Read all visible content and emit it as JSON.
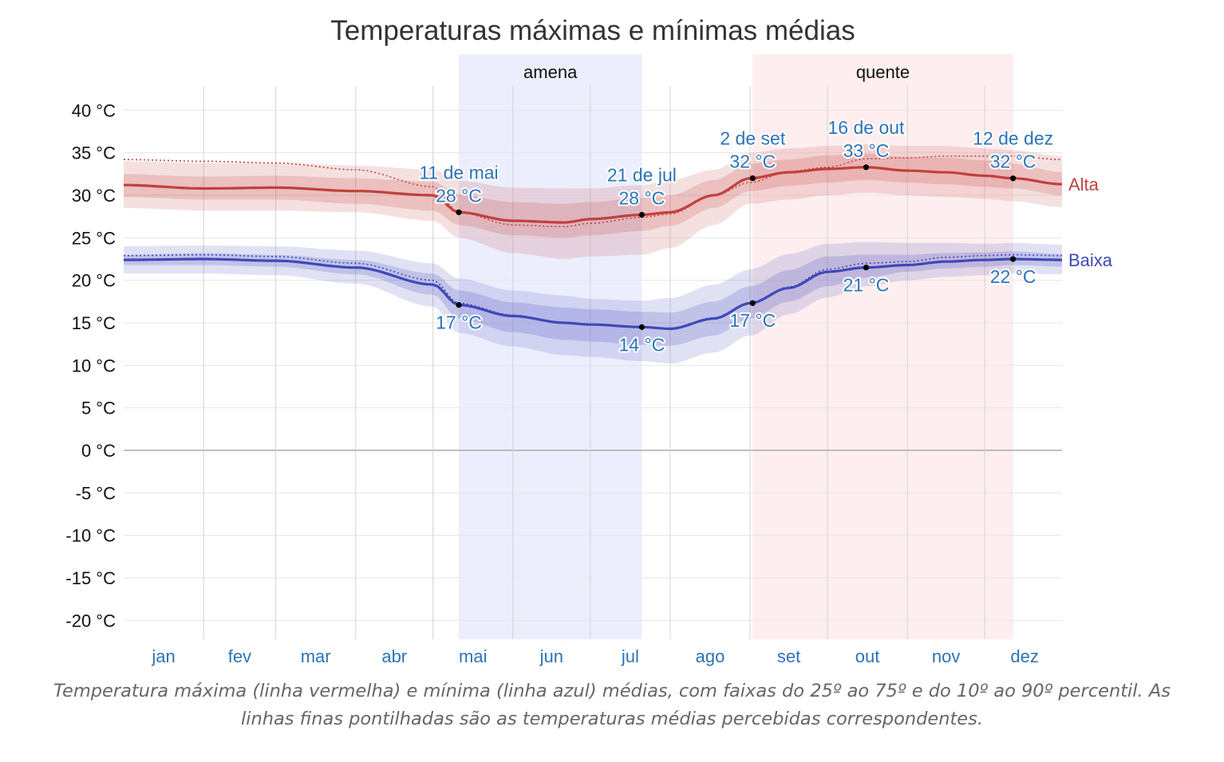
{
  "chart_data": {
    "type": "line",
    "title": "Temperaturas máximas e mínimas médias",
    "x_unit": "dia do ano",
    "month_labels": [
      "jan",
      "fev",
      "mar",
      "abr",
      "mai",
      "jun",
      "jul",
      "ago",
      "set",
      "out",
      "nov",
      "dez"
    ],
    "ylim": [
      -23,
      46
    ],
    "y_ticks": [
      40,
      35,
      30,
      25,
      20,
      15,
      10,
      5,
      0,
      -5,
      -10,
      -15,
      -20
    ],
    "y_tick_labels": [
      "40 °C",
      "35 °C",
      "30 °C",
      "25 °C",
      "20 °C",
      "15 °C",
      "10 °C",
      "5 °C",
      "0 °C",
      "-5 °C",
      "-10 °C",
      "-15 °C",
      "-20 °C"
    ],
    "x": [
      1,
      32,
      60,
      91,
      121,
      131,
      152,
      172,
      182,
      202,
      213,
      230,
      244,
      259,
      274,
      289,
      305,
      320,
      335,
      346,
      365
    ],
    "seasons": [
      {
        "label": "amena",
        "start_day": 131,
        "end_day": 202,
        "color": "#dfe3fb"
      },
      {
        "label": "quente",
        "start_day": 245,
        "end_day": 346,
        "color": "#fde2e4"
      }
    ],
    "series": [
      {
        "name": "Alta",
        "color": "#c1403d",
        "values": [
          31.2,
          30.8,
          30.9,
          30.5,
          30.0,
          28.0,
          27.0,
          26.8,
          27.2,
          27.7,
          28.0,
          30.0,
          32.0,
          32.7,
          33.1,
          33.3,
          32.9,
          32.7,
          32.3,
          32.0,
          31.3
        ],
        "p25": [
          29.8,
          29.5,
          29.5,
          29.0,
          28.2,
          26.5,
          25.3,
          25.0,
          25.3,
          25.8,
          26.4,
          28.5,
          30.5,
          31.1,
          31.5,
          31.8,
          31.5,
          31.3,
          31.0,
          30.8,
          30.0
        ],
        "p75": [
          32.5,
          32.2,
          32.3,
          32.0,
          31.6,
          30.1,
          29.2,
          29.0,
          29.2,
          29.7,
          30.0,
          31.8,
          33.7,
          34.2,
          34.7,
          34.9,
          34.5,
          34.4,
          34.1,
          33.7,
          32.7
        ],
        "p10": [
          28.5,
          28.2,
          28.2,
          28.0,
          27.0,
          25.0,
          23.2,
          22.5,
          22.8,
          23.0,
          23.8,
          26.5,
          29.0,
          29.5,
          30.0,
          30.3,
          30.0,
          29.8,
          29.6,
          29.3,
          28.6
        ],
        "p90": [
          34.0,
          33.8,
          33.8,
          33.5,
          33.0,
          31.7,
          30.9,
          30.8,
          30.8,
          31.2,
          31.8,
          33.0,
          35.0,
          35.5,
          35.8,
          36.0,
          35.8,
          35.8,
          35.5,
          35.3,
          34.6
        ],
        "perceived": [
          34.2,
          34.0,
          33.8,
          33.0,
          31.0,
          28.0,
          26.5,
          26.3,
          26.7,
          27.4,
          27.8,
          30.0,
          31.5,
          32.8,
          33.3,
          34.3,
          34.4,
          34.6,
          34.6,
          34.6,
          34.2
        ]
      },
      {
        "name": "Baixa",
        "color": "#3f48b8",
        "values": [
          22.4,
          22.5,
          22.3,
          21.5,
          19.5,
          17.1,
          15.8,
          15.0,
          14.8,
          14.5,
          14.3,
          15.5,
          17.3,
          19.1,
          21.0,
          21.5,
          21.8,
          22.2,
          22.4,
          22.5,
          22.4
        ],
        "p25": [
          21.8,
          21.8,
          21.6,
          20.7,
          18.3,
          15.5,
          13.9,
          13.0,
          12.8,
          12.4,
          12.3,
          13.5,
          15.5,
          17.5,
          19.3,
          20.3,
          21.0,
          21.4,
          21.6,
          21.8,
          21.6
        ],
        "p75": [
          23.0,
          23.2,
          23.0,
          22.4,
          20.8,
          18.8,
          17.4,
          16.8,
          16.6,
          16.3,
          16.2,
          17.5,
          19.3,
          21.2,
          22.8,
          23.0,
          23.0,
          23.2,
          23.3,
          23.4,
          23.1
        ],
        "p10": [
          20.8,
          20.8,
          20.6,
          19.6,
          16.9,
          13.8,
          12.2,
          11.2,
          11.0,
          10.5,
          10.2,
          11.5,
          13.5,
          16.0,
          18.0,
          19.3,
          20.0,
          20.4,
          20.6,
          20.8,
          20.7
        ],
        "p90": [
          24.0,
          24.1,
          24.0,
          23.5,
          22.0,
          20.2,
          18.8,
          18.2,
          17.8,
          17.6,
          17.9,
          19.5,
          21.3,
          23.1,
          24.3,
          24.5,
          24.4,
          24.4,
          24.3,
          24.4,
          24.2
        ],
        "perceived": [
          22.9,
          23.0,
          22.8,
          22.0,
          20.0,
          17.3,
          15.9,
          15.0,
          14.8,
          14.5,
          14.3,
          15.6,
          17.3,
          19.2,
          21.3,
          22.0,
          22.2,
          22.7,
          22.9,
          23.0,
          22.9
        ]
      }
    ],
    "annotations": [
      {
        "series": "Alta",
        "day": 131,
        "value": 28,
        "date_label": "11 de mai",
        "value_label": "28 °C",
        "position": "above"
      },
      {
        "series": "Alta",
        "day": 202,
        "value": 28,
        "date_label": "21 de jul",
        "value_label": "28 °C",
        "position": "above"
      },
      {
        "series": "Alta",
        "day": 245,
        "value": 32,
        "date_label": "2 de set",
        "value_label": "32 °C",
        "position": "above"
      },
      {
        "series": "Alta",
        "day": 289,
        "value": 33,
        "date_label": "16 de out",
        "value_label": "33 °C",
        "position": "above"
      },
      {
        "series": "Alta",
        "day": 346,
        "value": 32,
        "date_label": "12 de dez",
        "value_label": "32 °C",
        "position": "above"
      },
      {
        "series": "Baixa",
        "day": 131,
        "value": 17,
        "date_label": "",
        "value_label": "17 °C",
        "position": "below"
      },
      {
        "series": "Baixa",
        "day": 202,
        "value": 14,
        "date_label": "",
        "value_label": "14 °C",
        "position": "below"
      },
      {
        "series": "Baixa",
        "day": 245,
        "value": 17,
        "date_label": "",
        "value_label": "17 °C",
        "position": "below"
      },
      {
        "series": "Baixa",
        "day": 289,
        "value": 21,
        "date_label": "",
        "value_label": "21 °C",
        "position": "below"
      },
      {
        "series": "Baixa",
        "day": 346,
        "value": 22,
        "date_label": "",
        "value_label": "22 °C",
        "position": "below"
      }
    ],
    "caption": [
      "Temperatura máxima (linha vermelha) e mínima (linha azul) médias, com faixas do 25º ao 75º e do 10º ao 90º percentil. As",
      "linhas finas pontilhadas são as temperaturas médias percebidas correspondentes."
    ],
    "grid": true,
    "legend": "end-labels-right"
  }
}
